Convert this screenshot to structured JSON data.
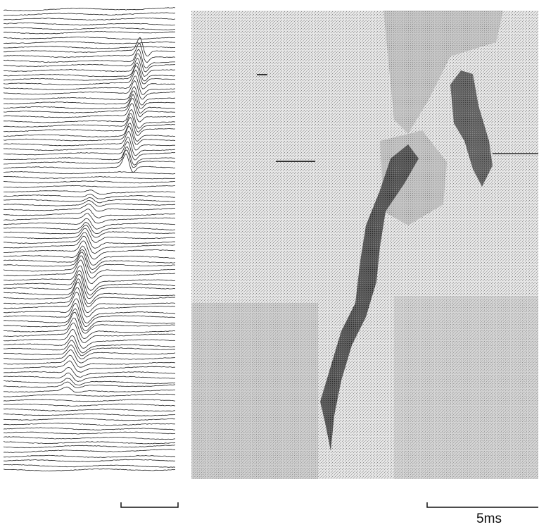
{
  "scale_bar_label": "5ms"
}
